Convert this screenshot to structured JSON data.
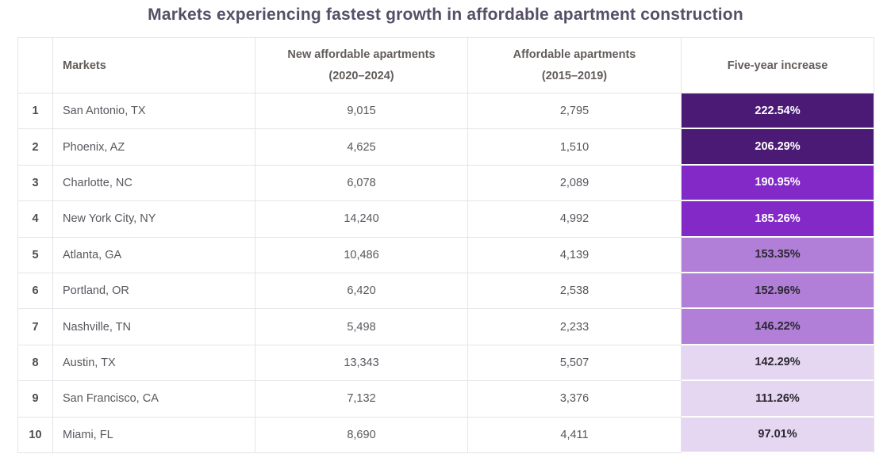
{
  "title": "Markets experiencing fastest growth in affordable apartment construction",
  "colors": {
    "title_text": "#564f67",
    "border": "#e5e3e8",
    "shade_groups": [
      {
        "name": "darkest-purple",
        "bg": "#4a1a74",
        "text": "#ffffff"
      },
      {
        "name": "bright-purple",
        "bg": "#8329c7",
        "text": "#ffffff"
      },
      {
        "name": "medium-purple",
        "bg": "#b17fd8",
        "text": "#2b2830"
      },
      {
        "name": "light-lavender",
        "bg": "#e5d6f1",
        "text": "#2b2830"
      }
    ]
  },
  "table": {
    "headers": {
      "rank": "",
      "markets": "Markets",
      "new_apartments_line1": "New affordable apartments",
      "new_apartments_line2": "(2020–2024)",
      "old_apartments_line1": "Affordable apartments",
      "old_apartments_line2": "(2015–2019)",
      "increase": "Five-year increase"
    },
    "rows": [
      {
        "rank": "1",
        "market": "San Antonio, TX",
        "new_units": "9,015",
        "old_units": "2,795",
        "increase": "222.54%",
        "shade_index": 0
      },
      {
        "rank": "2",
        "market": "Phoenix, AZ",
        "new_units": "4,625",
        "old_units": "1,510",
        "increase": "206.29%",
        "shade_index": 0
      },
      {
        "rank": "3",
        "market": "Charlotte, NC",
        "new_units": "6,078",
        "old_units": "2,089",
        "increase": "190.95%",
        "shade_index": 1
      },
      {
        "rank": "4",
        "market": "New York City, NY",
        "new_units": "14,240",
        "old_units": "4,992",
        "increase": "185.26%",
        "shade_index": 1
      },
      {
        "rank": "5",
        "market": "Atlanta, GA",
        "new_units": "10,486",
        "old_units": "4,139",
        "increase": "153.35%",
        "shade_index": 2
      },
      {
        "rank": "6",
        "market": "Portland, OR",
        "new_units": "6,420",
        "old_units": "2,538",
        "increase": "152.96%",
        "shade_index": 2
      },
      {
        "rank": "7",
        "market": "Nashville, TN",
        "new_units": "5,498",
        "old_units": "2,233",
        "increase": "146.22%",
        "shade_index": 2
      },
      {
        "rank": "8",
        "market": "Austin, TX",
        "new_units": "13,343",
        "old_units": "5,507",
        "increase": "142.29%",
        "shade_index": 3
      },
      {
        "rank": "9",
        "market": "San Francisco, CA",
        "new_units": "7,132",
        "old_units": "3,376",
        "increase": "111.26%",
        "shade_index": 3
      },
      {
        "rank": "10",
        "market": "Miami, FL",
        "new_units": "8,690",
        "old_units": "4,411",
        "increase": "97.01%",
        "shade_index": 3
      }
    ]
  },
  "chart_data": {
    "type": "table",
    "title": "Markets experiencing fastest growth in affordable apartment construction",
    "columns": [
      "Rank",
      "Markets",
      "New affordable apartments (2020–2024)",
      "Affordable apartments (2015–2019)",
      "Five-year increase"
    ],
    "rows": [
      [
        1,
        "San Antonio, TX",
        9015,
        2795,
        222.54
      ],
      [
        2,
        "Phoenix, AZ",
        4625,
        1510,
        206.29
      ],
      [
        3,
        "Charlotte, NC",
        6078,
        2089,
        190.95
      ],
      [
        4,
        "New York City, NY",
        14240,
        4992,
        185.26
      ],
      [
        5,
        "Atlanta, GA",
        10486,
        4139,
        153.35
      ],
      [
        6,
        "Portland, OR",
        6420,
        2538,
        152.96
      ],
      [
        7,
        "Nashville, TN",
        5498,
        2233,
        146.22
      ],
      [
        8,
        "Austin, TX",
        13343,
        5507,
        142.29
      ],
      [
        9,
        "San Francisco, CA",
        7132,
        3376,
        111.26
      ],
      [
        10,
        "Miami, FL",
        8690,
        4411,
        97.01
      ]
    ],
    "notes": "Five-year increase column rendered as purple heatmap: darker = higher percentage",
    "legend_position": "none"
  }
}
